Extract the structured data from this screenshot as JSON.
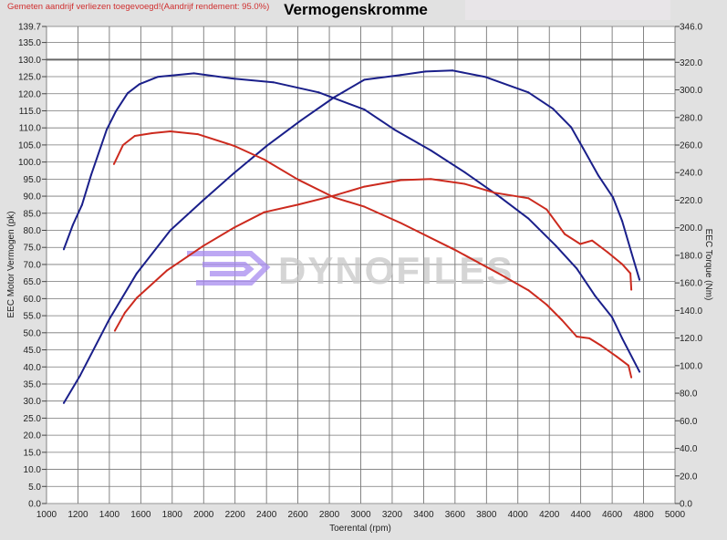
{
  "header": {
    "note": "Gemeten aandrijf verliezen toegevoegd!(Aandrijf rendement: 95.0%)",
    "title": "Vermogenskromme"
  },
  "watermark": {
    "text": "DYNOFILES",
    "logo_color": "#9b7fe6"
  },
  "colors": {
    "blue": "#1a1f8a",
    "red": "#cc2a1e",
    "grid": "#555555"
  },
  "chart_data": {
    "type": "line",
    "title": "Vermogenskromme",
    "xlabel": "Toerental (rpm)",
    "ylabel_left": "EEC Motor Vermogen (pk)",
    "ylabel_right": "EEC Torque (Nm)",
    "xlim": [
      1000,
      5000
    ],
    "ylim_left": [
      0,
      139.7
    ],
    "ylim_right": [
      0,
      346
    ],
    "grid": true,
    "x_ticks": [
      "1000",
      "1200",
      "1400",
      "1600",
      "1800",
      "2000",
      "2200",
      "2400",
      "2600",
      "2800",
      "3000",
      "3200",
      "3400",
      "3600",
      "3800",
      "4000",
      "4200",
      "4400",
      "4600",
      "4800",
      "5000"
    ],
    "y_left_ticks": [
      "0.0",
      "5.0",
      "10.0",
      "15.0",
      "20.0",
      "25.0",
      "30.0",
      "35.0",
      "40.0",
      "45.0",
      "50.0",
      "55.0",
      "60.0",
      "65.0",
      "70.0",
      "75.0",
      "80.0",
      "85.0",
      "90.0",
      "95.0",
      "100.0",
      "105.0",
      "110.0",
      "115.0",
      "120.0",
      "125.0",
      "130.0",
      "135.0",
      "139.7"
    ],
    "y_right_ticks": [
      "0.0",
      "20.0",
      "40.0",
      "60.0",
      "80.0",
      "100.0",
      "120.0",
      "140.0",
      "160.0",
      "180.0",
      "200.0",
      "220.0",
      "240.0",
      "260.0",
      "280.0",
      "300.0",
      "320.0",
      "346.0"
    ],
    "series": [
      {
        "color": "#1a1f8a",
        "axis": "left",
        "x": [
          1110,
          1214,
          1400,
          1574,
          1788,
          1997,
          2194,
          2403,
          2617,
          2832,
          3023,
          3255,
          3412,
          3585,
          3794,
          4067,
          4223,
          4339,
          4414,
          4513,
          4606,
          4664,
          4722,
          4774
        ],
        "y": [
          29.4,
          37.5,
          54.0,
          67.4,
          80.0,
          88.8,
          96.8,
          104.8,
          112.1,
          119.0,
          124.1,
          125.5,
          126.5,
          126.8,
          124.9,
          120.4,
          115.6,
          110.2,
          104.1,
          96.0,
          89.6,
          82.7,
          73.6,
          65.5
        ]
      },
      {
        "color": "#1a1f8a",
        "axis": "right",
        "x": [
          1110,
          1168,
          1226,
          1284,
          1383,
          1441,
          1516,
          1591,
          1707,
          1939,
          2194,
          2443,
          2733,
          3023,
          3214,
          3446,
          3661,
          3875,
          4067,
          4241,
          4374,
          4490,
          4600,
          4664,
          4774
        ],
        "y": [
          184.3,
          202.1,
          216.6,
          238.3,
          271.2,
          284.4,
          297.6,
          304.1,
          309.4,
          312.0,
          308.1,
          305.5,
          298.2,
          285.7,
          271.2,
          256.1,
          240.3,
          223.2,
          206.7,
          187.0,
          170.5,
          150.8,
          135.0,
          119.8,
          95.5
        ]
      },
      {
        "color": "#cc2a1e",
        "axis": "left",
        "x": [
          1435,
          1499,
          1574,
          1765,
          1997,
          2194,
          2385,
          2600,
          2832,
          3023,
          3255,
          3446,
          3661,
          3852,
          4067,
          4183,
          4298,
          4397,
          4472,
          4571,
          4664,
          4716,
          4722
        ],
        "y": [
          50.6,
          55.9,
          60.2,
          68.2,
          75.4,
          80.8,
          85.3,
          87.5,
          90.2,
          92.8,
          94.7,
          95.0,
          93.6,
          91.0,
          89.4,
          86.1,
          78.9,
          76.0,
          77.0,
          73.6,
          70.1,
          67.4,
          62.6
        ]
      },
      {
        "color": "#cc2a1e",
        "axis": "right",
        "x": [
          1429,
          1487,
          1562,
          1672,
          1788,
          1962,
          2194,
          2385,
          2600,
          2832,
          3023,
          3255,
          3603,
          3893,
          4067,
          4183,
          4281,
          4374,
          4455,
          4530,
          4629,
          4704,
          4722
        ],
        "y": [
          246.2,
          260.0,
          266.6,
          268.6,
          269.9,
          267.9,
          259.4,
          249.5,
          235.0,
          221.9,
          215.3,
          203.4,
          183.7,
          165.9,
          154.7,
          144.2,
          133.0,
          121.1,
          119.8,
          114.5,
          106.6,
          100.1,
          91.5
        ]
      }
    ]
  }
}
